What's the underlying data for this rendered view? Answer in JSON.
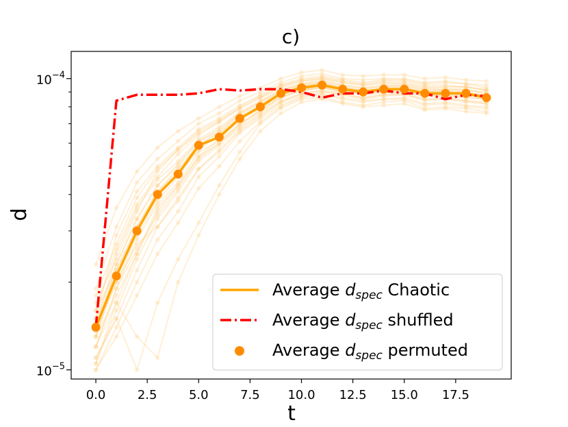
{
  "chart_data": {
    "type": "line",
    "title": "c)",
    "xlabel": "t",
    "ylabel": "d",
    "yscale": "log",
    "xlim": [
      -1.2,
      20.2
    ],
    "ylim": [
      9.3e-06,
      0.000124
    ],
    "x_ticks": [
      0,
      2.5,
      5,
      7.5,
      10,
      12.5,
      15,
      17.5
    ],
    "x_tick_labels": [
      "0.0",
      "2.5",
      "5.0",
      "7.5",
      "10.0",
      "12.5",
      "15.0",
      "17.5"
    ],
    "y_ticks": [
      1e-05,
      0.0001
    ],
    "y_tick_labels": [
      {
        "base": "10",
        "exp": "−5"
      },
      {
        "base": "10",
        "exp": "−4"
      }
    ],
    "colors": {
      "chaotic": "#FFA500",
      "shuffled": "#FF0000",
      "permuted": "#FF8C00",
      "background_traces": "#FFD08A"
    },
    "x": [
      0,
      1,
      2,
      3,
      4,
      5,
      6,
      7,
      8,
      9,
      10,
      11,
      12,
      13,
      14,
      15,
      16,
      17,
      18,
      19
    ],
    "series": [
      {
        "name": "Average d_spec Chaotic",
        "legend_main": "Average ",
        "legend_sym": "d",
        "legend_sub": "spec",
        "legend_rest": " Chaotic",
        "style": "solid",
        "values": [
          1.4e-05,
          2.1e-05,
          3e-05,
          4e-05,
          4.7e-05,
          5.9e-05,
          6.3e-05,
          7.3e-05,
          8e-05,
          8.9e-05,
          9.3e-05,
          9.5e-05,
          9.2e-05,
          9e-05,
          9.2e-05,
          9.2e-05,
          8.9e-05,
          8.9e-05,
          8.9e-05,
          8.6e-05
        ]
      },
      {
        "name": "Average d_spec shuffled",
        "legend_main": "Average ",
        "legend_sym": "d",
        "legend_sub": "spec",
        "legend_rest": " shuffled",
        "style": "dashdot",
        "values": [
          1.4e-05,
          8.4e-05,
          8.8e-05,
          8.8e-05,
          8.8e-05,
          8.9e-05,
          9.2e-05,
          9.1e-05,
          9.2e-05,
          9.2e-05,
          9e-05,
          8.6e-05,
          8.9e-05,
          8.9e-05,
          9.1e-05,
          8.9e-05,
          8.9e-05,
          8.5e-05,
          8.8e-05,
          8.7e-05
        ]
      },
      {
        "name": "Average d_spec permuted",
        "legend_main": "Average ",
        "legend_sym": "d",
        "legend_sub": "spec",
        "legend_rest": " permuted",
        "style": "markers",
        "values": [
          1.4e-05,
          2.1e-05,
          3e-05,
          4e-05,
          4.7e-05,
          5.9e-05,
          6.3e-05,
          7.3e-05,
          8e-05,
          8.9e-05,
          9.3e-05,
          9.5e-05,
          9.2e-05,
          9e-05,
          9.2e-05,
          9.2e-05,
          8.9e-05,
          8.9e-05,
          8.9e-05,
          8.6e-05
        ]
      }
    ],
    "background_traces": {
      "description_count": 24,
      "values": [
        [
          1.05e-05,
          1.6e-05,
          2.4e-05,
          3.3e-05,
          4.1e-05,
          5.2e-05,
          5.9e-05,
          6.8e-05,
          7.6e-05,
          8.4e-05,
          8.9e-05,
          9.1e-05,
          8.9e-05,
          8.6e-05,
          8.8e-05,
          8.9e-05,
          8.5e-05,
          8.6e-05,
          8.4e-05,
          8.3e-05
        ],
        [
          1.6e-05,
          2.6e-05,
          3.7e-05,
          4.6e-05,
          5.5e-05,
          6.4e-05,
          7.1e-05,
          7.9e-05,
          8.6e-05,
          9.3e-05,
          9.8e-05,
          0.0001,
          9.7e-05,
          9.5e-05,
          9.6e-05,
          9.7e-05,
          9.3e-05,
          9.4e-05,
          9.4e-05,
          9.1e-05
        ],
        [
          1.2e-05,
          1.9e-05,
          2.8e-05,
          3.7e-05,
          4.4e-05,
          5.6e-05,
          6.1e-05,
          7e-05,
          7.8e-05,
          8.7e-05,
          9.1e-05,
          9.4e-05,
          9e-05,
          8.9e-05,
          9e-05,
          9.1e-05,
          8.8e-05,
          8.7e-05,
          8.8e-05,
          8.5e-05
        ],
        [
          1.9e-05,
          3.1e-05,
          4.4e-05,
          5.3e-05,
          6.1e-05,
          7e-05,
          7.6e-05,
          8.4e-05,
          9e-05,
          9.7e-05,
          0.000102,
          0.000104,
          0.0001,
          9.9e-05,
          0.0001,
          0.0001,
          9.7e-05,
          9.8e-05,
          9.6e-05,
          9.5e-05
        ],
        [
          1e-05,
          1.4e-05,
          2e-05,
          2.8e-05,
          3.5e-05,
          4.6e-05,
          5.4e-05,
          6.5e-05,
          7.3e-05,
          8.1e-05,
          8.7e-05,
          8.9e-05,
          8.6e-05,
          8.4e-05,
          8.5e-05,
          8.6e-05,
          8.2e-05,
          8.3e-05,
          8.1e-05,
          8e-05
        ],
        [
          2.3e-05,
          3.6e-05,
          4.8e-05,
          5.8e-05,
          6.6e-05,
          7.3e-05,
          8e-05,
          8.7e-05,
          9.3e-05,
          0.0001,
          0.000105,
          0.000107,
          0.000103,
          0.000102,
          0.000103,
          0.000103,
          0.0001,
          0.000101,
          9.9e-05,
          9.8e-05
        ],
        [
          1.3e-05,
          2.3e-05,
          3.3e-05,
          4.3e-05,
          5e-05,
          6.1e-05,
          6.6e-05,
          7.6e-05,
          8.3e-05,
          9.1e-05,
          9.5e-05,
          9.7e-05,
          9.4e-05,
          9.2e-05,
          9.4e-05,
          9.4e-05,
          9.1e-05,
          9.1e-05,
          9.2e-05,
          8.8e-05
        ],
        [
          1.1e-05,
          1.5e-05,
          1e-05,
          1.7e-05,
          2.4e-05,
          3.2e-05,
          4.3e-05,
          5.6e-05,
          7e-05,
          7.9e-05,
          8.5e-05,
          8.6e-05,
          8.3e-05,
          8.1e-05,
          8.3e-05,
          8.4e-05,
          7.9e-05,
          8e-05,
          7.9e-05,
          7.7e-05
        ],
        [
          1.5e-05,
          2.9e-05,
          4.1e-05,
          5e-05,
          5.8e-05,
          6.7e-05,
          7.3e-05,
          8.1e-05,
          8.7e-05,
          9.5e-05,
          9.9e-05,
          0.000101,
          9.8e-05,
          9.6e-05,
          9.8e-05,
          9.8e-05,
          9.5e-05,
          9.5e-05,
          9.3e-05,
          9.2e-05
        ],
        [
          1.4e-05,
          2e-05,
          2.7e-05,
          3.1e-05,
          3.9e-05,
          4.9e-05,
          5.7e-05,
          6.7e-05,
          7.5e-05,
          8.3e-05,
          8.8e-05,
          9e-05,
          8.8e-05,
          8.5e-05,
          8.7e-05,
          8.8e-05,
          8.4e-05,
          8.5e-05,
          8.3e-05,
          8.2e-05
        ],
        [
          1.2e-05,
          1.7e-05,
          1.3e-05,
          1.1e-05,
          2e-05,
          2.9e-05,
          4e-05,
          5.3e-05,
          6.6e-05,
          7.6e-05,
          8.3e-05,
          8.5e-05,
          8.2e-05,
          8e-05,
          8.1e-05,
          8.2e-05,
          7.8e-05,
          7.9e-05,
          7.7e-05,
          7.6e-05
        ],
        [
          1.7e-05,
          2.4e-05,
          3.5e-05,
          4.8e-05,
          5.7e-05,
          6.6e-05,
          7.2e-05,
          8e-05,
          8.8e-05,
          9.5e-05,
          0.0001,
          0.000102,
          9.9e-05,
          9.7e-05,
          9.9e-05,
          9.9e-05,
          9.6e-05,
          9.7e-05,
          9.6e-05,
          9.3e-05
        ],
        [
          1.3e-05,
          1.8e-05,
          2.5e-05,
          3.6e-05,
          4.3e-05,
          5.4e-05,
          6e-05,
          7e-05,
          7.7e-05,
          8.6e-05,
          9.1e-05,
          9.3e-05,
          9e-05,
          8.8e-05,
          8.9e-05,
          9e-05,
          8.7e-05,
          8.8e-05,
          8.6e-05,
          8.5e-05
        ],
        [
          1e-05,
          1.3e-05,
          1.8e-05,
          2.5e-05,
          3.2e-05,
          4.2e-05,
          5e-05,
          6.1e-05,
          7.1e-05,
          8e-05,
          8.6e-05,
          8.8e-05,
          8.5e-05,
          8.3e-05,
          8.5e-05,
          8.5e-05,
          8.1e-05,
          8.2e-05,
          8e-05,
          7.9e-05
        ],
        [
          1.8e-05,
          2.7e-05,
          3.9e-05,
          4.9e-05,
          5.7e-05,
          6.5e-05,
          7.1e-05,
          7.9e-05,
          8.6e-05,
          9.4e-05,
          9.8e-05,
          0.0001,
          9.7e-05,
          9.5e-05,
          9.7e-05,
          9.6e-05,
          9.4e-05,
          9.3e-05,
          9.4e-05,
          9.1e-05
        ],
        [
          1.1e-05,
          1.5e-05,
          2.2e-05,
          3.1e-05,
          3.8e-05,
          4.9e-05,
          5.6e-05,
          6.6e-05,
          7.4e-05,
          8.3e-05,
          8.9e-05,
          9.1e-05,
          8.8e-05,
          8.6e-05,
          8.8e-05,
          8.8e-05,
          8.5e-05,
          8.5e-05,
          8.4e-05,
          8.2e-05
        ],
        [
          1.6e-05,
          2.2e-05,
          3.1e-05,
          4.1e-05,
          4.9e-05,
          5.9e-05,
          6.5e-05,
          7.5e-05,
          8.2e-05,
          9e-05,
          9.5e-05,
          9.6e-05,
          9.3e-05,
          9.1e-05,
          9.3e-05,
          9.3e-05,
          9e-05,
          9.1e-05,
          8.9e-05,
          8.8e-05
        ],
        [
          1.3e-05,
          2.1e-05,
          3e-05,
          3.9e-05,
          4.7e-05,
          5.7e-05,
          6.4e-05,
          7.3e-05,
          8.1e-05,
          8.9e-05,
          9.4e-05,
          9.7e-05,
          9.3e-05,
          9.1e-05,
          9.2e-05,
          9.3e-05,
          9e-05,
          9e-05,
          9e-05,
          8.7e-05
        ],
        [
          1.4e-05,
          2.5e-05,
          3.6e-05,
          4.5e-05,
          5.2e-05,
          6.2e-05,
          6.8e-05,
          7.7e-05,
          8.4e-05,
          9.2e-05,
          9.6e-05,
          9.8e-05,
          9.5e-05,
          9.3e-05,
          9.5e-05,
          9.5e-05,
          9.2e-05,
          9.2e-05,
          9.1e-05,
          9e-05
        ],
        [
          1.2e-05,
          1.9e-05,
          2.6e-05,
          3.4e-05,
          4.2e-05,
          5.3e-05,
          6e-05,
          6.9e-05,
          7.8e-05,
          8.6e-05,
          9.1e-05,
          9.3e-05,
          9e-05,
          8.9e-05,
          9e-05,
          9e-05,
          8.7e-05,
          8.7e-05,
          8.6e-05,
          8.5e-05
        ],
        [
          1.5e-05,
          2.3e-05,
          3.3e-05,
          4.3e-05,
          5.1e-05,
          6.1e-05,
          6.7e-05,
          7.6e-05,
          8.3e-05,
          9.1e-05,
          9.6e-05,
          9.9e-05,
          9.5e-05,
          9.3e-05,
          9.4e-05,
          9.5e-05,
          9.2e-05,
          9.2e-05,
          9.2e-05,
          8.9e-05
        ],
        [
          1.05e-05,
          1.7e-05,
          2.5e-05,
          3.5e-05,
          4.3e-05,
          5.4e-05,
          6.2e-05,
          7.2e-05,
          8e-05,
          8.8e-05,
          9.2e-05,
          9.4e-05,
          9.1e-05,
          9e-05,
          9.1e-05,
          9.2e-05,
          8.8e-05,
          8.9e-05,
          8.8e-05,
          8.6e-05
        ],
        [
          1.35e-05,
          2e-05,
          2.9e-05,
          3.8e-05,
          4.6e-05,
          5.8e-05,
          6.3e-05,
          7.2e-05,
          7.9e-05,
          8.8e-05,
          9.2e-05,
          9.4e-05,
          9.1e-05,
          8.9e-05,
          9.1e-05,
          9.1e-05,
          8.8e-05,
          8.8e-05,
          8.8e-05,
          8.5e-05
        ],
        [
          1.45e-05,
          2.2e-05,
          3.1e-05,
          4.1e-05,
          4.8e-05,
          6e-05,
          6.5e-05,
          7.4e-05,
          8.1e-05,
          9e-05,
          9.4e-05,
          9.6e-05,
          9.3e-05,
          9.1e-05,
          9.3e-05,
          9.3e-05,
          9e-05,
          9e-05,
          9e-05,
          8.7e-05
        ]
      ]
    },
    "legend_position": "lower-right"
  }
}
